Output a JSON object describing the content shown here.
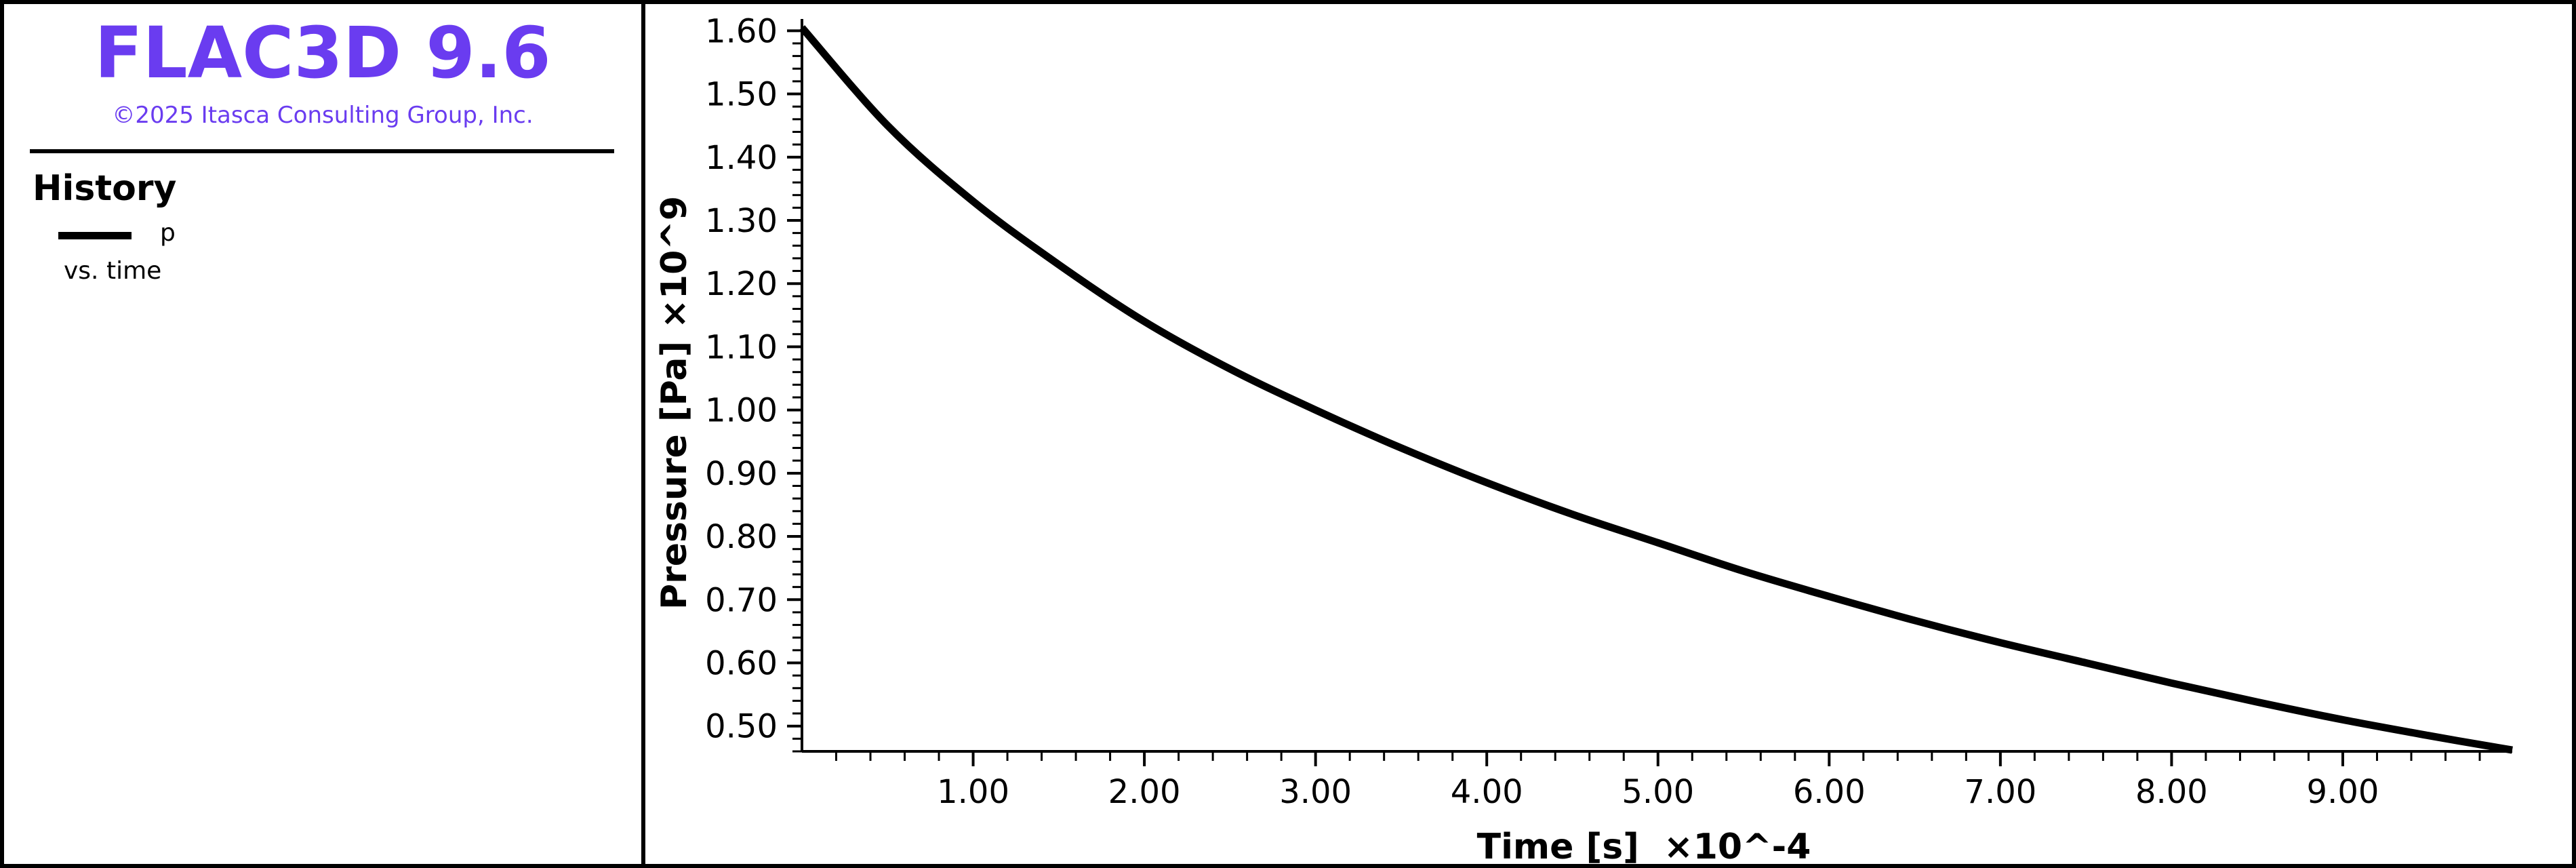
{
  "header": {
    "app_title": "FLAC3D 9.6",
    "copyright": "©2025 Itasca Consulting Group, Inc."
  },
  "legend": {
    "heading": "History",
    "entries": [
      {
        "label": "p",
        "sub": "vs. time",
        "color": "#000000"
      }
    ]
  },
  "colors": {
    "accent": "#6a3cf0",
    "line": "#000000"
  },
  "chart_data": {
    "type": "line",
    "title": "",
    "xlabel": "Time [s]  ×10^-4",
    "ylabel": "Pressure [Pa]  ×10^9",
    "xlim": [
      0,
      9.99
    ],
    "ylim": [
      0.46,
      1.61
    ],
    "x_ticks": [
      "1.00",
      "2.00",
      "3.00",
      "4.00",
      "5.00",
      "6.00",
      "7.00",
      "8.00",
      "9.00"
    ],
    "y_ticks": [
      "0.50",
      "0.60",
      "0.70",
      "0.80",
      "0.90",
      "1.00",
      "1.10",
      "1.20",
      "1.30",
      "1.40",
      "1.50",
      "1.60"
    ],
    "grid": false,
    "legend_position": "left-panel",
    "series": [
      {
        "name": "p",
        "x": [
          0,
          0.5,
          1.0,
          1.5,
          2.0,
          2.5,
          3.0,
          3.5,
          4.0,
          4.5,
          5.0,
          5.5,
          6.0,
          6.5,
          7.0,
          7.5,
          8.0,
          8.5,
          9.0,
          9.5,
          9.99
        ],
        "y": [
          1.605,
          1.45,
          1.33,
          1.23,
          1.14,
          1.065,
          1.0,
          0.94,
          0.885,
          0.835,
          0.79,
          0.745,
          0.705,
          0.667,
          0.632,
          0.6,
          0.568,
          0.538,
          0.51,
          0.485,
          0.462
        ]
      }
    ]
  }
}
